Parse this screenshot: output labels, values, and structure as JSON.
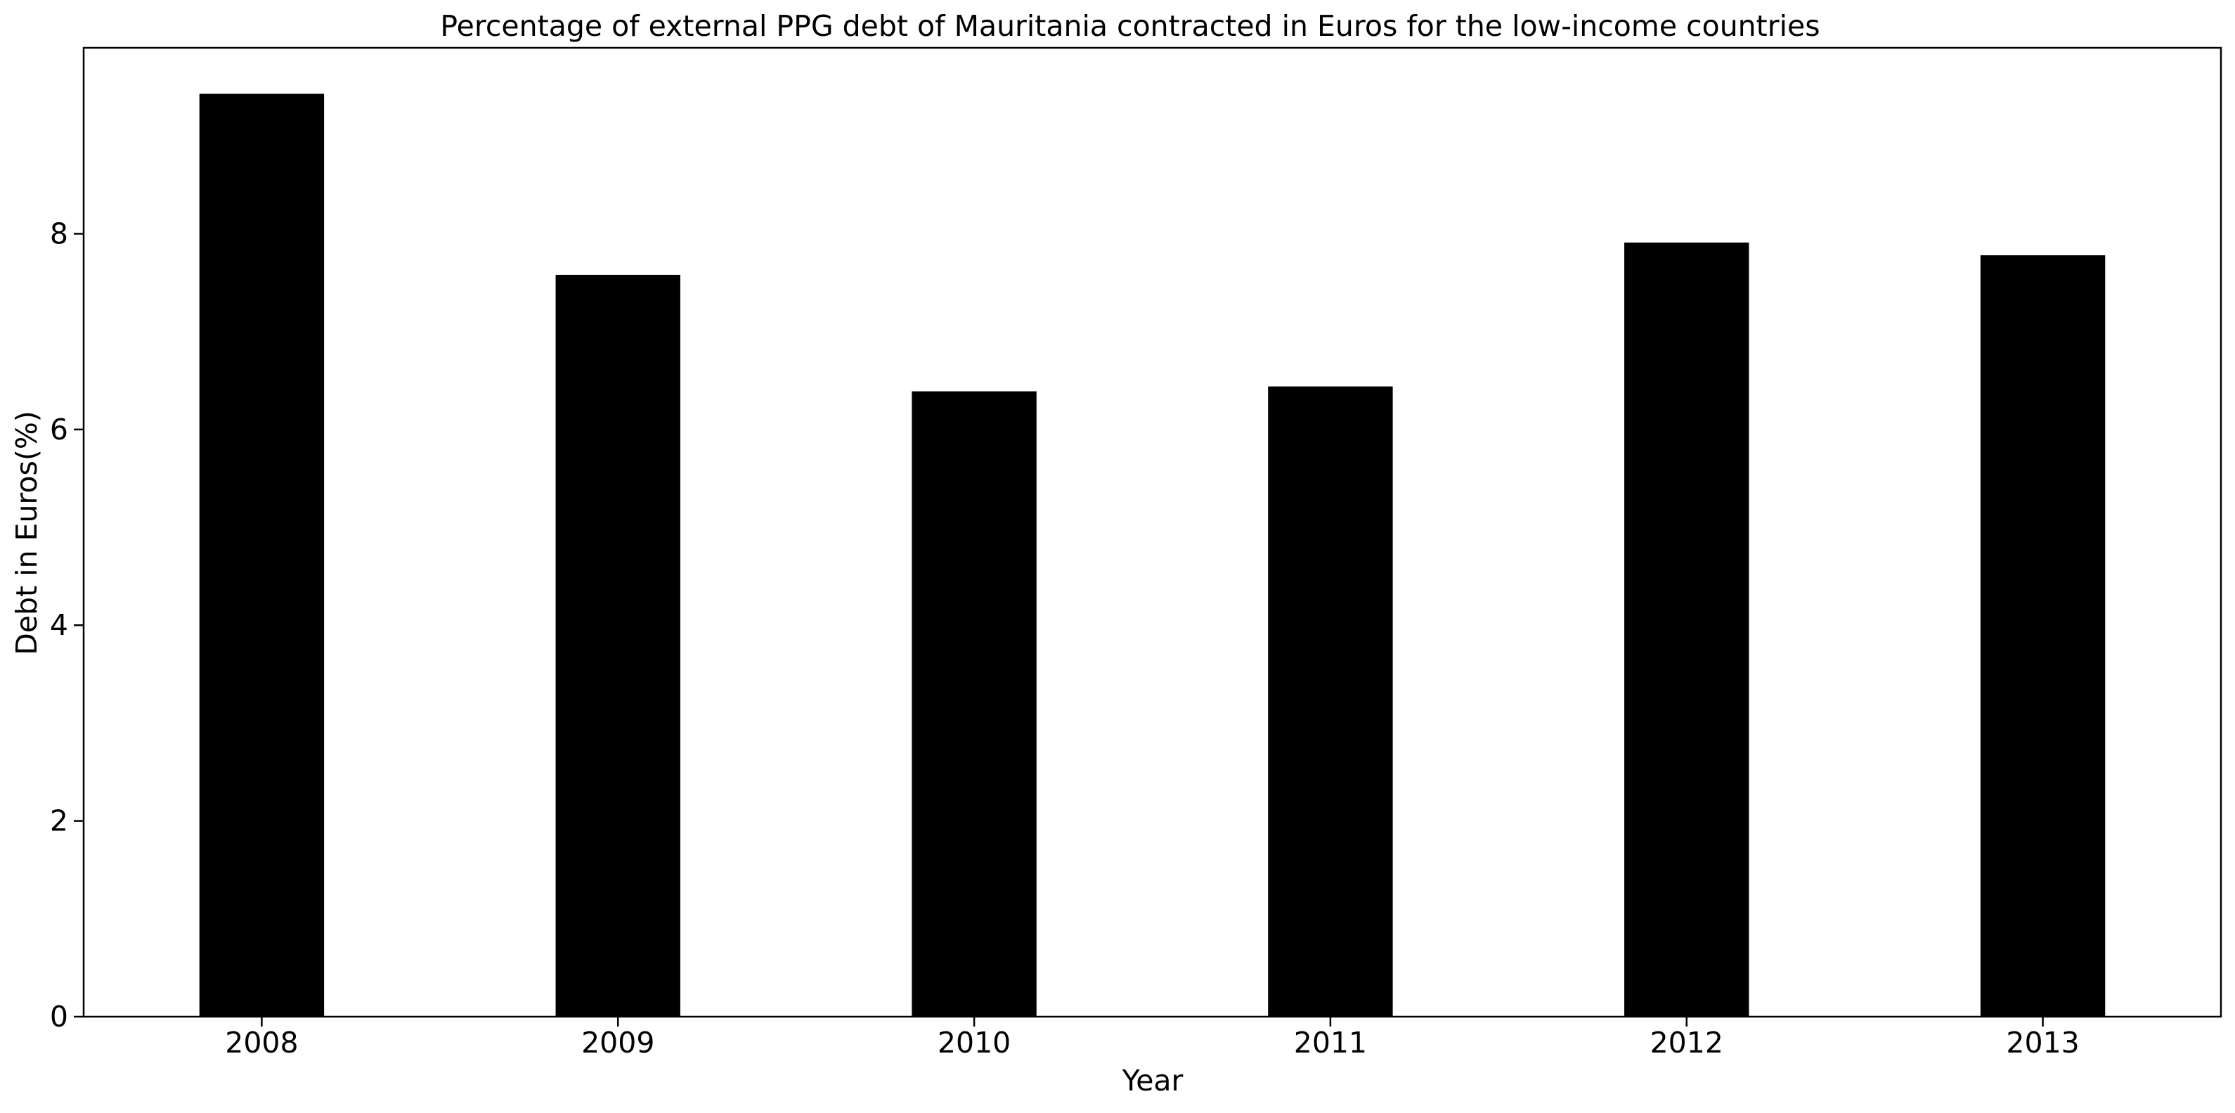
{
  "chart_data": {
    "type": "bar",
    "title": "Percentage of external PPG debt of Mauritania contracted in Euros for the low-income countries",
    "xlabel": "Year",
    "ylabel": "Debt in Euros(%)",
    "categories": [
      "2008",
      "2009",
      "2010",
      "2011",
      "2012",
      "2013"
    ],
    "values": [
      9.43,
      7.58,
      6.39,
      6.44,
      7.91,
      7.78
    ],
    "ylim": [
      0,
      9.9
    ],
    "yticks": [
      0,
      2,
      4,
      6,
      8
    ],
    "grid": false,
    "legend": "none",
    "bar_color": "#000000"
  }
}
